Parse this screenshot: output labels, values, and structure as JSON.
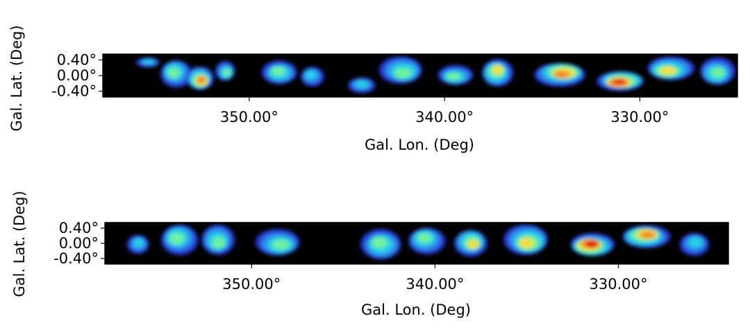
{
  "chart_data": [
    {
      "type": "heatmap",
      "xlabel": "Gal. Lon. (Deg)",
      "ylabel": "Gal. Lat. (Deg)",
      "xlim": [
        357.5,
        325.0
      ],
      "ylim": [
        -0.55,
        0.55
      ],
      "x_ticks": [
        350,
        340,
        330
      ],
      "x_tick_labels": [
        "350.00°",
        "340.00°",
        "330.00°"
      ],
      "y_ticks": [
        0.4,
        0.0,
        -0.4
      ],
      "y_tick_labels": [
        "0.40°",
        "0.00°",
        "-0.40°"
      ],
      "colormap": [
        "#2b3bd6",
        "#2f8cf0",
        "#26d0e6",
        "#6ef0a0",
        "#f0e040",
        "#f08a20",
        "#e01010"
      ],
      "background": "#000000",
      "grid": false,
      "emission_regions": [
        {
          "lon": 355.2,
          "lat": 0.35,
          "w": 1.2,
          "h": 0.25,
          "level": 0.35
        },
        {
          "lon": 353.8,
          "lat": 0.05,
          "w": 1.6,
          "h": 0.7,
          "level": 0.5
        },
        {
          "lon": 352.5,
          "lat": -0.1,
          "w": 1.4,
          "h": 0.6,
          "level": 0.9
        },
        {
          "lon": 351.2,
          "lat": 0.1,
          "w": 1.0,
          "h": 0.5,
          "level": 0.45
        },
        {
          "lon": 348.5,
          "lat": 0.1,
          "w": 1.8,
          "h": 0.6,
          "level": 0.5
        },
        {
          "lon": 346.8,
          "lat": 0.0,
          "w": 1.2,
          "h": 0.5,
          "level": 0.4
        },
        {
          "lon": 344.2,
          "lat": -0.25,
          "w": 1.4,
          "h": 0.4,
          "level": 0.4
        },
        {
          "lon": 342.2,
          "lat": 0.1,
          "w": 2.2,
          "h": 0.7,
          "level": 0.55
        },
        {
          "lon": 339.5,
          "lat": 0.0,
          "w": 1.8,
          "h": 0.5,
          "level": 0.45
        },
        {
          "lon": 337.3,
          "lat": 0.1,
          "w": 1.6,
          "h": 0.7,
          "level": 0.7
        },
        {
          "lon": 334.0,
          "lat": 0.05,
          "w": 2.6,
          "h": 0.6,
          "level": 0.75
        },
        {
          "lon": 331.0,
          "lat": -0.15,
          "w": 2.4,
          "h": 0.5,
          "level": 0.95
        },
        {
          "lon": 328.5,
          "lat": 0.15,
          "w": 2.4,
          "h": 0.6,
          "level": 0.7
        },
        {
          "lon": 326.0,
          "lat": 0.1,
          "w": 1.8,
          "h": 0.7,
          "level": 0.55
        }
      ]
    },
    {
      "type": "heatmap",
      "xlabel": "Gal. Lon. (Deg)",
      "ylabel": "Gal. Lat. (Deg)",
      "xlim": [
        358.0,
        324.0
      ],
      "ylim": [
        -0.55,
        0.55
      ],
      "x_ticks": [
        350,
        340,
        330
      ],
      "x_tick_labels": [
        "350.00°",
        "340.00°",
        "330.00°"
      ],
      "y_ticks": [
        0.4,
        0.0,
        -0.4
      ],
      "y_tick_labels": [
        "0.40°",
        "0.00°",
        "-0.40°"
      ],
      "colormap": [
        "#2b3bd6",
        "#2f8cf0",
        "#26d0e6",
        "#6ef0a0",
        "#f0e040",
        "#f08a20",
        "#e01010"
      ],
      "background": "#000000",
      "grid": false,
      "emission_regions": [
        {
          "lon": 356.2,
          "lat": 0.0,
          "w": 1.2,
          "h": 0.5,
          "level": 0.3
        },
        {
          "lon": 354.0,
          "lat": 0.1,
          "w": 2.0,
          "h": 0.8,
          "level": 0.45
        },
        {
          "lon": 351.8,
          "lat": 0.05,
          "w": 1.8,
          "h": 0.8,
          "level": 0.55
        },
        {
          "lon": 348.5,
          "lat": 0.0,
          "w": 2.4,
          "h": 0.7,
          "level": 0.5
        },
        {
          "lon": 343.0,
          "lat": 0.0,
          "w": 2.2,
          "h": 0.8,
          "level": 0.55
        },
        {
          "lon": 340.5,
          "lat": 0.1,
          "w": 2.0,
          "h": 0.7,
          "level": 0.5
        },
        {
          "lon": 338.0,
          "lat": 0.0,
          "w": 1.8,
          "h": 0.7,
          "level": 0.7
        },
        {
          "lon": 335.0,
          "lat": 0.05,
          "w": 2.4,
          "h": 0.8,
          "level": 0.6
        },
        {
          "lon": 331.5,
          "lat": -0.05,
          "w": 2.4,
          "h": 0.6,
          "level": 0.95
        },
        {
          "lon": 328.5,
          "lat": 0.2,
          "w": 2.6,
          "h": 0.6,
          "level": 0.8
        },
        {
          "lon": 325.8,
          "lat": 0.0,
          "w": 1.6,
          "h": 0.6,
          "level": 0.4
        }
      ]
    }
  ]
}
